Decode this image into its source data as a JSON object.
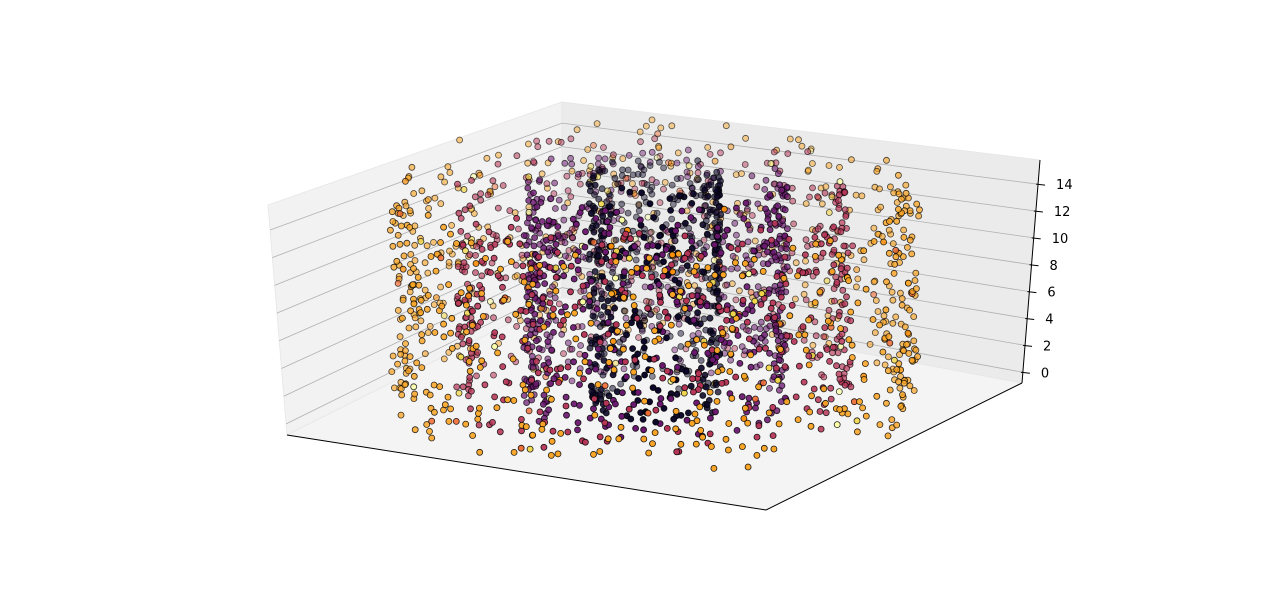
{
  "chart_data": {
    "type": "scatter",
    "projection": "3d",
    "title": "",
    "xlabel": "",
    "ylabel": "",
    "zlabel": "",
    "zlim": [
      -0.8,
      15.8
    ],
    "z_ticks": [
      0,
      2,
      4,
      6,
      8,
      10,
      12,
      14
    ],
    "z_tick_labels": [
      "0",
      "2",
      "4",
      "6",
      "8",
      "10",
      "12",
      "14"
    ],
    "x_ticks_visible": false,
    "y_ticks_visible": false,
    "grid": true,
    "colormap": "inferno",
    "marker_edge_color": "#000000",
    "structure": "four concentric cylindrical shells of points spanning z 0 to 15, colored by radius",
    "shells": [
      {
        "radius": 1.0,
        "z_range": [
          0,
          15
        ],
        "color": "#0d0829"
      },
      {
        "radius": 2.0,
        "z_range": [
          0,
          15
        ],
        "color": "#6a176e"
      },
      {
        "radius": 3.0,
        "z_range": [
          0,
          15
        ],
        "color": "#b63557"
      },
      {
        "radius": 4.0,
        "z_range": [
          0,
          15
        ],
        "color": "#f9a424"
      }
    ],
    "accent_colors": [
      "#f98e09",
      "#ef6a32",
      "#fcfea4",
      "#f2d74b"
    ]
  }
}
